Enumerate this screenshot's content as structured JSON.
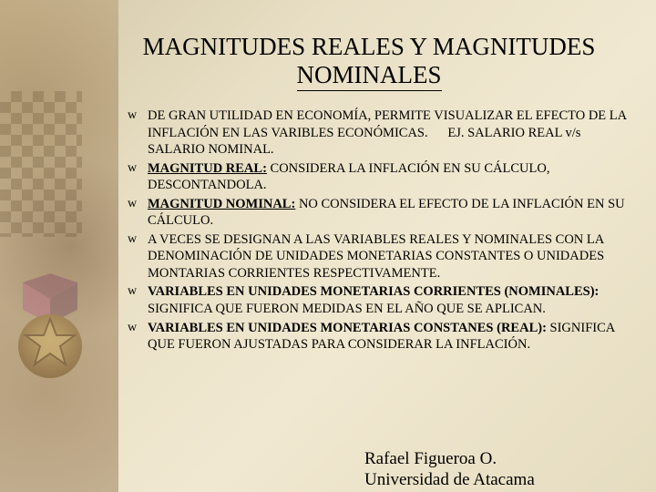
{
  "title_line1": "MAGNITUDES REALES Y MAGNITUDES",
  "title_line2": "NOMINALES",
  "bullets": [
    {
      "html": "DE GRAN UTILIDAD EN ECONOMÍA, PERMITE VISUALIZAR EL EFECTO DE LA INFLACIÓN EN LAS VARIBLES ECONÓMICAS.&nbsp;&nbsp;&nbsp;&nbsp;&nbsp;&nbsp;EJ. SALARIO REAL v/s  SALARIO NOMINAL."
    },
    {
      "html": "<span class=\"bold-u\">MAGNITUD REAL:</span> CONSIDERA LA INFLACIÓN EN SU CÁLCULO, DESCONTANDOLA."
    },
    {
      "html": "<span class=\"bold-u\">MAGNITUD NOMINAL:</span> NO CONSIDERA EL EFECTO DE LA INFLACIÓN EN SU CÁLCULO."
    },
    {
      "html": "A VECES SE DESIGNAN A LAS VARIABLES REALES Y NOMINALES CON LA DENOMINACIÓN DE UNIDADES MONETARIAS CONSTANTES O UNIDADES MONTARIAS CORRIENTES RESPECTIVAMENTE."
    },
    {
      "html": "<span class=\"bold\">VARIABLES EN UNIDADES MONETARIAS CORRIENTES (NOMINALES):</span> SIGNIFICA QUE FUERON MEDIDAS EN EL AÑO QUE SE APLICAN."
    },
    {
      "html": "<span class=\"bold\">VARIABLES EN UNIDADES MONETARIAS CONSTANES (REAL):</span> SIGNIFICA QUE FUERON AJUSTADAS PARA CONSIDERAR LA INFLACIÓN."
    }
  ],
  "author_line1": "Rafael Figueroa O.",
  "author_line2": "Universidad de Atacama",
  "colors": {
    "bg_start": "#d4c8a8",
    "bg_end": "#e5dcc0",
    "text": "#000000"
  }
}
